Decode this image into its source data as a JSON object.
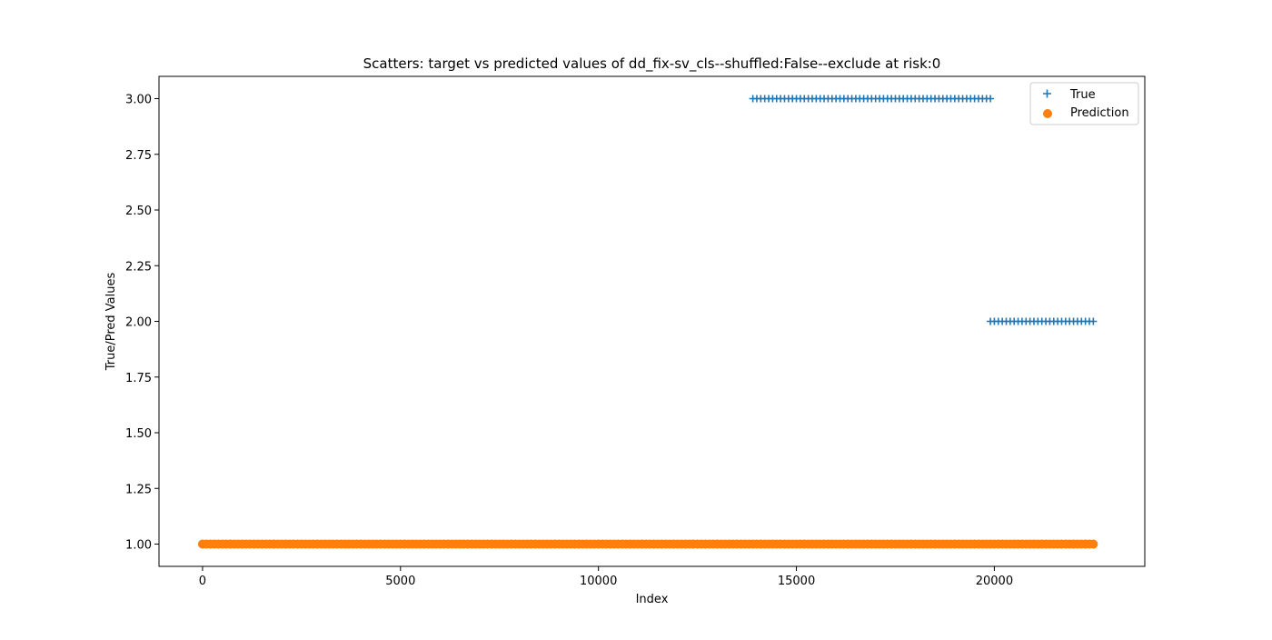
{
  "colors": {
    "true_series": "#1f77b4",
    "prediction_series": "#ff7f0e",
    "axes": "#000000",
    "legend_border": "#cccccc",
    "background": "#ffffff"
  },
  "chart_data": {
    "type": "scatter",
    "title": "Scatters: target vs predicted values of dd_fix-sv_cls--shuffled:False--exclude at risk:0",
    "xlabel": "Index",
    "ylabel": "True/Pred Values",
    "xlim": [
      -1100,
      23800
    ],
    "ylim": [
      0.9,
      3.1
    ],
    "xticks": [
      0,
      5000,
      10000,
      15000,
      20000
    ],
    "xtick_labels": [
      "0",
      "5000",
      "10000",
      "15000",
      "20000"
    ],
    "yticks": [
      1.0,
      1.25,
      1.5,
      1.75,
      2.0,
      2.25,
      2.5,
      2.75,
      3.0
    ],
    "ytick_labels": [
      "1.00",
      "1.25",
      "1.50",
      "1.75",
      "2.00",
      "2.25",
      "2.50",
      "2.75",
      "3.00"
    ],
    "grid": false,
    "legend": "top-right",
    "series": [
      {
        "name": "True",
        "marker": "plus",
        "color": "#1f77b4",
        "segments": [
          {
            "x_start": 0,
            "x_end": 13900,
            "y": 1.0
          },
          {
            "x_start": 13900,
            "x_end": 19900,
            "y": 3.0
          },
          {
            "x_start": 19900,
            "x_end": 22500,
            "y": 2.0
          }
        ]
      },
      {
        "name": "Prediction",
        "marker": "circle",
        "color": "#ff7f0e",
        "segments": [
          {
            "x_start": 0,
            "x_end": 22500,
            "y": 1.0
          }
        ]
      }
    ]
  }
}
